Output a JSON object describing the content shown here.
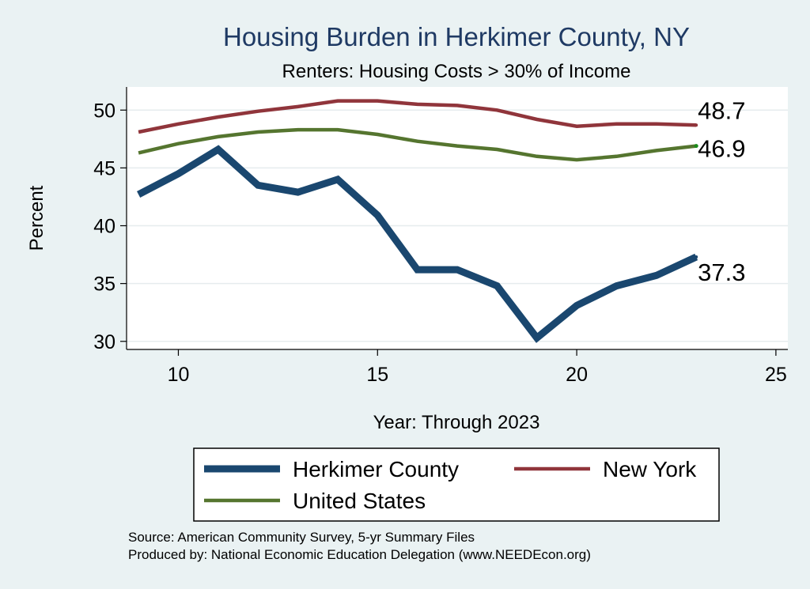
{
  "chart_data": {
    "type": "line",
    "title": "Housing Burden in Herkimer County, NY",
    "subtitle": "Renters: Housing Costs > 30% of Income",
    "xlabel": "Year: Through 2023",
    "ylabel": "Percent",
    "xlim": [
      8.7,
      25.3
    ],
    "ylim": [
      29.3,
      52.0
    ],
    "xticks": [
      10,
      15,
      20,
      25
    ],
    "yticks": [
      30,
      35,
      40,
      45,
      50
    ],
    "grid": true,
    "legend_position": "bottom",
    "series": [
      {
        "name": "Herkimer County",
        "color": "#1a476f",
        "x": [
          9,
          10,
          11,
          12,
          13,
          14,
          15,
          16,
          17,
          18,
          19,
          20,
          21,
          22,
          23
        ],
        "values": [
          42.7,
          44.5,
          46.6,
          43.5,
          42.9,
          44.0,
          40.9,
          36.2,
          36.2,
          34.8,
          30.3,
          33.1,
          34.8,
          35.7,
          37.3
        ],
        "end_label": "37.3"
      },
      {
        "name": "New York",
        "color": "#90353b",
        "x": [
          9,
          10,
          11,
          12,
          13,
          14,
          15,
          16,
          17,
          18,
          19,
          20,
          21,
          22,
          23
        ],
        "values": [
          48.1,
          48.8,
          49.4,
          49.9,
          50.3,
          50.8,
          50.8,
          50.5,
          50.4,
          50.0,
          49.2,
          48.6,
          48.8,
          48.8,
          48.7
        ],
        "end_label": "48.7"
      },
      {
        "name": "United States",
        "color": "#55752f",
        "x": [
          9,
          10,
          11,
          12,
          13,
          14,
          15,
          16,
          17,
          18,
          19,
          20,
          21,
          22,
          23
        ],
        "values": [
          46.3,
          47.1,
          47.7,
          48.1,
          48.3,
          48.3,
          47.9,
          47.3,
          46.9,
          46.6,
          46.0,
          45.7,
          46.0,
          46.5,
          46.9
        ],
        "end_label": "46.9"
      }
    ],
    "legend": [
      {
        "label": "Herkimer County",
        "series": 0
      },
      {
        "label": "New York",
        "series": 1
      },
      {
        "label": "United States",
        "series": 2
      }
    ],
    "notes": [
      "Source: American Community Survey, 5-yr Summary Files",
      "Produced by: National Economic Education Delegation (www.NEEDEcon.org)"
    ]
  }
}
